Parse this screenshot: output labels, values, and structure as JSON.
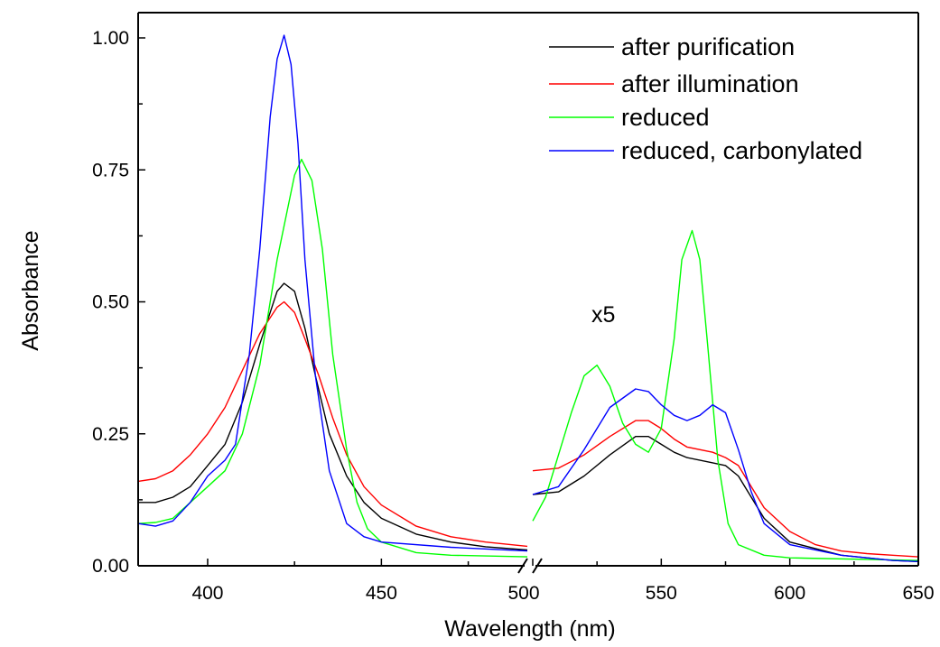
{
  "chart_data": {
    "type": "line",
    "title": "",
    "xlabel": "Wavelength (nm)",
    "ylabel": "Absorbance",
    "x_break": [
      492,
      500
    ],
    "xlim": [
      380,
      650
    ],
    "ylim": [
      0,
      1.0
    ],
    "x_ticks": [
      400,
      450,
      500,
      550,
      600,
      650
    ],
    "y_ticks": [
      "0.00",
      "0.25",
      "0.50",
      "0.75",
      "1.00"
    ],
    "legend_position": "top-right",
    "annotation": "x5",
    "series": [
      {
        "name": "after purification",
        "color": "#000000",
        "points": [
          [
            380,
            0.12
          ],
          [
            385,
            0.12
          ],
          [
            390,
            0.13
          ],
          [
            395,
            0.15
          ],
          [
            400,
            0.19
          ],
          [
            405,
            0.23
          ],
          [
            410,
            0.31
          ],
          [
            415,
            0.42
          ],
          [
            420,
            0.52
          ],
          [
            422,
            0.535
          ],
          [
            425,
            0.52
          ],
          [
            428,
            0.45
          ],
          [
            431,
            0.36
          ],
          [
            435,
            0.25
          ],
          [
            440,
            0.17
          ],
          [
            445,
            0.12
          ],
          [
            450,
            0.09
          ],
          [
            460,
            0.06
          ],
          [
            470,
            0.045
          ],
          [
            480,
            0.036
          ],
          [
            492,
            0.03
          ],
          [
            500,
            0.135
          ],
          [
            510,
            0.14
          ],
          [
            520,
            0.17
          ],
          [
            530,
            0.21
          ],
          [
            540,
            0.245
          ],
          [
            545,
            0.245
          ],
          [
            550,
            0.23
          ],
          [
            555,
            0.215
          ],
          [
            560,
            0.205
          ],
          [
            570,
            0.195
          ],
          [
            575,
            0.19
          ],
          [
            580,
            0.17
          ],
          [
            590,
            0.09
          ],
          [
            600,
            0.045
          ],
          [
            620,
            0.02
          ],
          [
            640,
            0.01
          ],
          [
            650,
            0.008
          ]
        ]
      },
      {
        "name": "after illumination",
        "color": "#ff0000",
        "points": [
          [
            380,
            0.16
          ],
          [
            385,
            0.165
          ],
          [
            390,
            0.18
          ],
          [
            395,
            0.21
          ],
          [
            400,
            0.25
          ],
          [
            405,
            0.3
          ],
          [
            410,
            0.37
          ],
          [
            415,
            0.44
          ],
          [
            420,
            0.49
          ],
          [
            422,
            0.5
          ],
          [
            425,
            0.48
          ],
          [
            428,
            0.43
          ],
          [
            432,
            0.36
          ],
          [
            436,
            0.28
          ],
          [
            440,
            0.21
          ],
          [
            445,
            0.15
          ],
          [
            450,
            0.115
          ],
          [
            460,
            0.075
          ],
          [
            470,
            0.055
          ],
          [
            480,
            0.045
          ],
          [
            492,
            0.037
          ],
          [
            500,
            0.18
          ],
          [
            510,
            0.185
          ],
          [
            520,
            0.21
          ],
          [
            530,
            0.245
          ],
          [
            540,
            0.275
          ],
          [
            545,
            0.275
          ],
          [
            550,
            0.26
          ],
          [
            555,
            0.24
          ],
          [
            560,
            0.225
          ],
          [
            570,
            0.215
          ],
          [
            575,
            0.205
          ],
          [
            580,
            0.19
          ],
          [
            590,
            0.11
          ],
          [
            600,
            0.065
          ],
          [
            610,
            0.04
          ],
          [
            620,
            0.028
          ],
          [
            630,
            0.023
          ],
          [
            640,
            0.02
          ],
          [
            650,
            0.017
          ]
        ]
      },
      {
        "name": "reduced",
        "color": "#00ff00",
        "points": [
          [
            380,
            0.08
          ],
          [
            385,
            0.082
          ],
          [
            390,
            0.09
          ],
          [
            395,
            0.12
          ],
          [
            400,
            0.15
          ],
          [
            405,
            0.18
          ],
          [
            410,
            0.25
          ],
          [
            415,
            0.38
          ],
          [
            420,
            0.58
          ],
          [
            425,
            0.74
          ],
          [
            427,
            0.77
          ],
          [
            430,
            0.73
          ],
          [
            433,
            0.6
          ],
          [
            436,
            0.4
          ],
          [
            440,
            0.22
          ],
          [
            443,
            0.12
          ],
          [
            446,
            0.07
          ],
          [
            450,
            0.045
          ],
          [
            460,
            0.025
          ],
          [
            470,
            0.02
          ],
          [
            492,
            0.017
          ],
          [
            500,
            0.085
          ],
          [
            505,
            0.13
          ],
          [
            510,
            0.21
          ],
          [
            515,
            0.29
          ],
          [
            520,
            0.36
          ],
          [
            525,
            0.38
          ],
          [
            530,
            0.34
          ],
          [
            535,
            0.27
          ],
          [
            540,
            0.23
          ],
          [
            545,
            0.215
          ],
          [
            550,
            0.26
          ],
          [
            555,
            0.43
          ],
          [
            558,
            0.58
          ],
          [
            562,
            0.635
          ],
          [
            565,
            0.58
          ],
          [
            568,
            0.42
          ],
          [
            572,
            0.2
          ],
          [
            576,
            0.08
          ],
          [
            580,
            0.04
          ],
          [
            590,
            0.02
          ],
          [
            600,
            0.015
          ],
          [
            650,
            0.01
          ]
        ]
      },
      {
        "name": "reduced, carbonylated",
        "color": "#0000ff",
        "points": [
          [
            380,
            0.08
          ],
          [
            385,
            0.075
          ],
          [
            390,
            0.085
          ],
          [
            395,
            0.12
          ],
          [
            400,
            0.17
          ],
          [
            405,
            0.2
          ],
          [
            408,
            0.23
          ],
          [
            412,
            0.4
          ],
          [
            415,
            0.6
          ],
          [
            418,
            0.85
          ],
          [
            420,
            0.96
          ],
          [
            422,
            1.005
          ],
          [
            424,
            0.95
          ],
          [
            426,
            0.8
          ],
          [
            428,
            0.58
          ],
          [
            431,
            0.36
          ],
          [
            435,
            0.18
          ],
          [
            440,
            0.08
          ],
          [
            445,
            0.055
          ],
          [
            450,
            0.045
          ],
          [
            470,
            0.035
          ],
          [
            492,
            0.028
          ],
          [
            500,
            0.135
          ],
          [
            510,
            0.15
          ],
          [
            520,
            0.22
          ],
          [
            530,
            0.3
          ],
          [
            540,
            0.335
          ],
          [
            545,
            0.33
          ],
          [
            550,
            0.305
          ],
          [
            555,
            0.285
          ],
          [
            560,
            0.275
          ],
          [
            565,
            0.285
          ],
          [
            570,
            0.305
          ],
          [
            575,
            0.29
          ],
          [
            580,
            0.22
          ],
          [
            585,
            0.14
          ],
          [
            590,
            0.08
          ],
          [
            600,
            0.04
          ],
          [
            620,
            0.02
          ],
          [
            640,
            0.01
          ],
          [
            650,
            0.008
          ]
        ]
      }
    ]
  }
}
